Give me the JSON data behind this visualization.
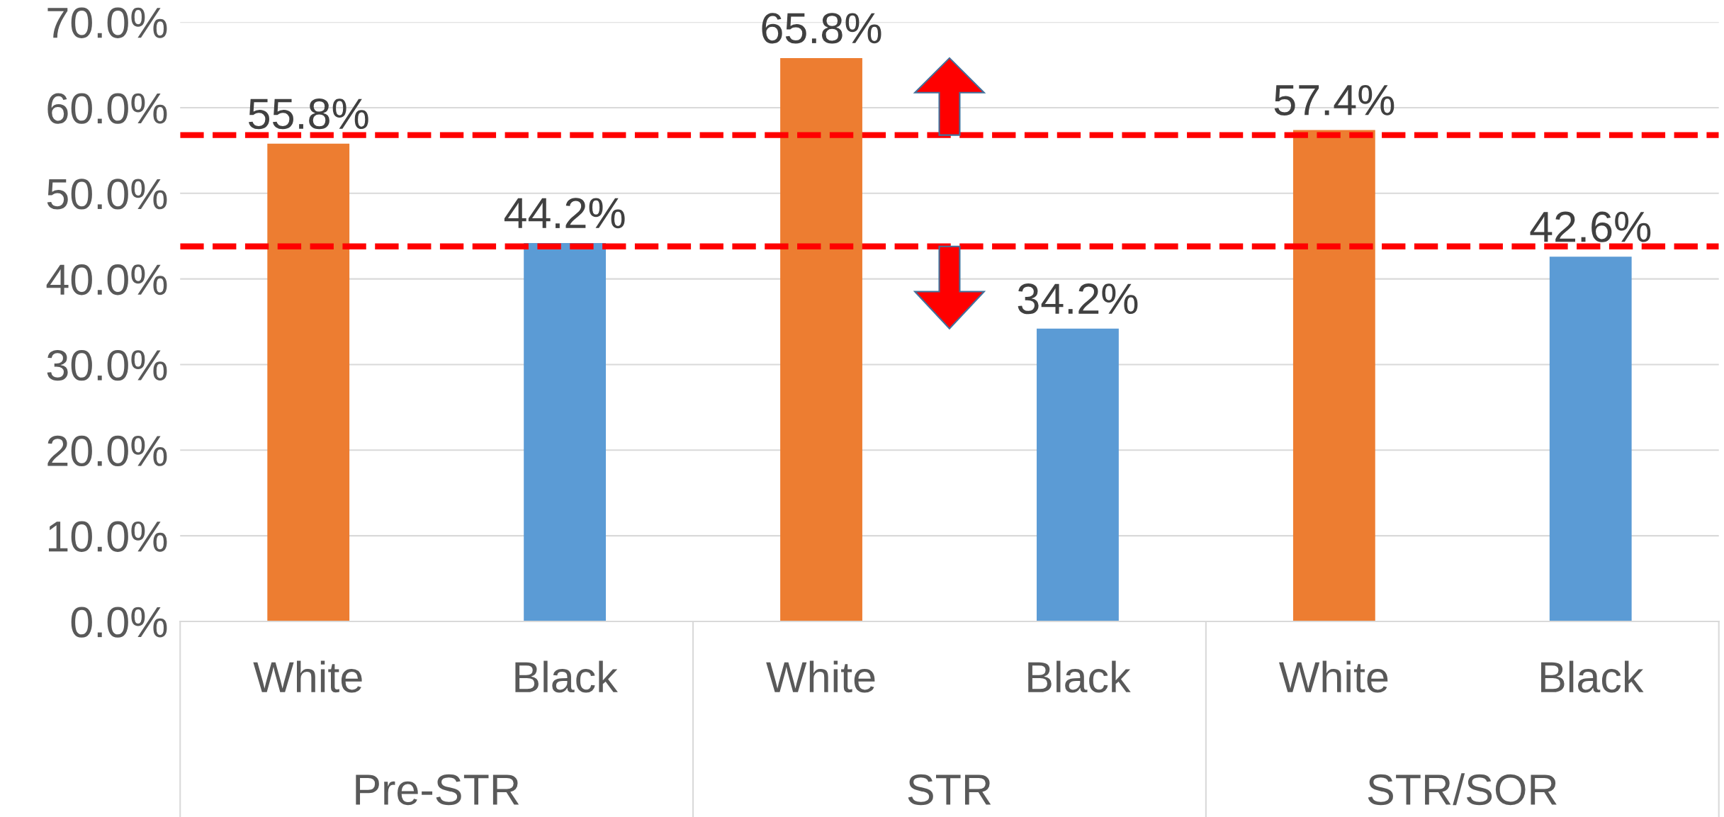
{
  "chart_data": {
    "type": "bar",
    "categories": [
      "White",
      "Black",
      "White",
      "Black",
      "White",
      "Black"
    ],
    "values": [
      55.8,
      44.2,
      65.8,
      34.2,
      57.4,
      42.6
    ],
    "colors": [
      "#ed7d31",
      "#5b9bd5",
      "#ed7d31",
      "#5b9bd5",
      "#ed7d31",
      "#5b9bd5"
    ],
    "value_labels": [
      "55.8%",
      "44.2%",
      "65.8%",
      "34.2%",
      "57.4%",
      "42.6%"
    ],
    "ylim": [
      0,
      70
    ],
    "yticks": [
      {
        "value": 0,
        "label": "0.0%"
      },
      {
        "value": 10,
        "label": "10.0%"
      },
      {
        "value": 20,
        "label": "20.0%"
      },
      {
        "value": 30,
        "label": "30.0%"
      },
      {
        "value": 40,
        "label": "40.0%"
      },
      {
        "value": 50,
        "label": "50.0%"
      },
      {
        "value": 60,
        "label": "60.0%"
      },
      {
        "value": 70,
        "label": "70.0%"
      }
    ],
    "grid": "y",
    "ref_lines": [
      {
        "axis": "y",
        "value": 56.8,
        "color": "#ff0000",
        "line_style": "dashed"
      },
      {
        "axis": "y",
        "value": 43.8,
        "color": "#ff0000",
        "line_style": "dashed"
      }
    ],
    "annotations": [
      "Pre-STR",
      "STR",
      "STR/SOR"
    ]
  }
}
